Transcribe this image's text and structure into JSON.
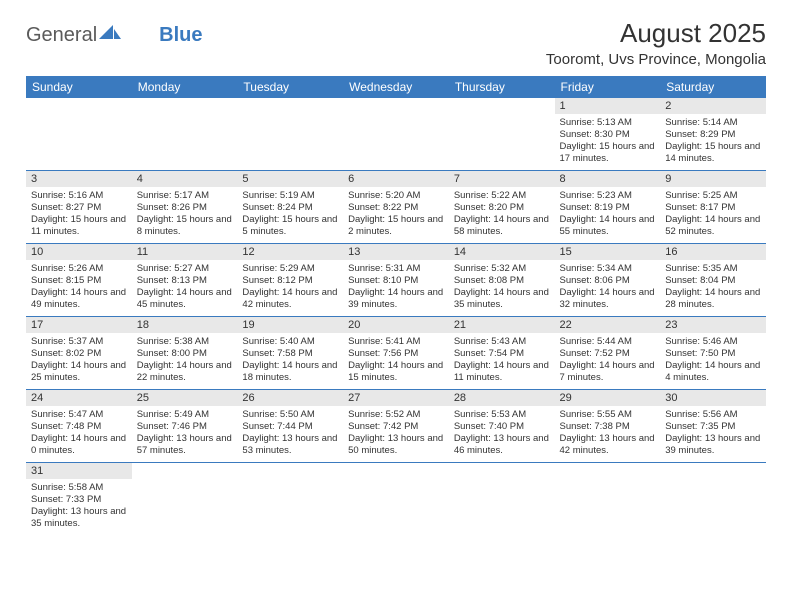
{
  "logo": {
    "general": "General",
    "blue": "Blue"
  },
  "title": "August 2025",
  "location": "Tooromt, Uvs Province, Mongolia",
  "dayHeaders": [
    "Sunday",
    "Monday",
    "Tuesday",
    "Wednesday",
    "Thursday",
    "Friday",
    "Saturday"
  ],
  "colors": {
    "header_bg": "#3a7abf",
    "header_text": "#ffffff",
    "daynum_bg": "#e8e8e8",
    "row_border": "#3a7abf",
    "text": "#333333"
  },
  "weeks": [
    [
      null,
      null,
      null,
      null,
      null,
      {
        "n": "1",
        "sr": "Sunrise: 5:13 AM",
        "ss": "Sunset: 8:30 PM",
        "dl": "Daylight: 15 hours and 17 minutes."
      },
      {
        "n": "2",
        "sr": "Sunrise: 5:14 AM",
        "ss": "Sunset: 8:29 PM",
        "dl": "Daylight: 15 hours and 14 minutes."
      }
    ],
    [
      {
        "n": "3",
        "sr": "Sunrise: 5:16 AM",
        "ss": "Sunset: 8:27 PM",
        "dl": "Daylight: 15 hours and 11 minutes."
      },
      {
        "n": "4",
        "sr": "Sunrise: 5:17 AM",
        "ss": "Sunset: 8:26 PM",
        "dl": "Daylight: 15 hours and 8 minutes."
      },
      {
        "n": "5",
        "sr": "Sunrise: 5:19 AM",
        "ss": "Sunset: 8:24 PM",
        "dl": "Daylight: 15 hours and 5 minutes."
      },
      {
        "n": "6",
        "sr": "Sunrise: 5:20 AM",
        "ss": "Sunset: 8:22 PM",
        "dl": "Daylight: 15 hours and 2 minutes."
      },
      {
        "n": "7",
        "sr": "Sunrise: 5:22 AM",
        "ss": "Sunset: 8:20 PM",
        "dl": "Daylight: 14 hours and 58 minutes."
      },
      {
        "n": "8",
        "sr": "Sunrise: 5:23 AM",
        "ss": "Sunset: 8:19 PM",
        "dl": "Daylight: 14 hours and 55 minutes."
      },
      {
        "n": "9",
        "sr": "Sunrise: 5:25 AM",
        "ss": "Sunset: 8:17 PM",
        "dl": "Daylight: 14 hours and 52 minutes."
      }
    ],
    [
      {
        "n": "10",
        "sr": "Sunrise: 5:26 AM",
        "ss": "Sunset: 8:15 PM",
        "dl": "Daylight: 14 hours and 49 minutes."
      },
      {
        "n": "11",
        "sr": "Sunrise: 5:27 AM",
        "ss": "Sunset: 8:13 PM",
        "dl": "Daylight: 14 hours and 45 minutes."
      },
      {
        "n": "12",
        "sr": "Sunrise: 5:29 AM",
        "ss": "Sunset: 8:12 PM",
        "dl": "Daylight: 14 hours and 42 minutes."
      },
      {
        "n": "13",
        "sr": "Sunrise: 5:31 AM",
        "ss": "Sunset: 8:10 PM",
        "dl": "Daylight: 14 hours and 39 minutes."
      },
      {
        "n": "14",
        "sr": "Sunrise: 5:32 AM",
        "ss": "Sunset: 8:08 PM",
        "dl": "Daylight: 14 hours and 35 minutes."
      },
      {
        "n": "15",
        "sr": "Sunrise: 5:34 AM",
        "ss": "Sunset: 8:06 PM",
        "dl": "Daylight: 14 hours and 32 minutes."
      },
      {
        "n": "16",
        "sr": "Sunrise: 5:35 AM",
        "ss": "Sunset: 8:04 PM",
        "dl": "Daylight: 14 hours and 28 minutes."
      }
    ],
    [
      {
        "n": "17",
        "sr": "Sunrise: 5:37 AM",
        "ss": "Sunset: 8:02 PM",
        "dl": "Daylight: 14 hours and 25 minutes."
      },
      {
        "n": "18",
        "sr": "Sunrise: 5:38 AM",
        "ss": "Sunset: 8:00 PM",
        "dl": "Daylight: 14 hours and 22 minutes."
      },
      {
        "n": "19",
        "sr": "Sunrise: 5:40 AM",
        "ss": "Sunset: 7:58 PM",
        "dl": "Daylight: 14 hours and 18 minutes."
      },
      {
        "n": "20",
        "sr": "Sunrise: 5:41 AM",
        "ss": "Sunset: 7:56 PM",
        "dl": "Daylight: 14 hours and 15 minutes."
      },
      {
        "n": "21",
        "sr": "Sunrise: 5:43 AM",
        "ss": "Sunset: 7:54 PM",
        "dl": "Daylight: 14 hours and 11 minutes."
      },
      {
        "n": "22",
        "sr": "Sunrise: 5:44 AM",
        "ss": "Sunset: 7:52 PM",
        "dl": "Daylight: 14 hours and 7 minutes."
      },
      {
        "n": "23",
        "sr": "Sunrise: 5:46 AM",
        "ss": "Sunset: 7:50 PM",
        "dl": "Daylight: 14 hours and 4 minutes."
      }
    ],
    [
      {
        "n": "24",
        "sr": "Sunrise: 5:47 AM",
        "ss": "Sunset: 7:48 PM",
        "dl": "Daylight: 14 hours and 0 minutes."
      },
      {
        "n": "25",
        "sr": "Sunrise: 5:49 AM",
        "ss": "Sunset: 7:46 PM",
        "dl": "Daylight: 13 hours and 57 minutes."
      },
      {
        "n": "26",
        "sr": "Sunrise: 5:50 AM",
        "ss": "Sunset: 7:44 PM",
        "dl": "Daylight: 13 hours and 53 minutes."
      },
      {
        "n": "27",
        "sr": "Sunrise: 5:52 AM",
        "ss": "Sunset: 7:42 PM",
        "dl": "Daylight: 13 hours and 50 minutes."
      },
      {
        "n": "28",
        "sr": "Sunrise: 5:53 AM",
        "ss": "Sunset: 7:40 PM",
        "dl": "Daylight: 13 hours and 46 minutes."
      },
      {
        "n": "29",
        "sr": "Sunrise: 5:55 AM",
        "ss": "Sunset: 7:38 PM",
        "dl": "Daylight: 13 hours and 42 minutes."
      },
      {
        "n": "30",
        "sr": "Sunrise: 5:56 AM",
        "ss": "Sunset: 7:35 PM",
        "dl": "Daylight: 13 hours and 39 minutes."
      }
    ],
    [
      {
        "n": "31",
        "sr": "Sunrise: 5:58 AM",
        "ss": "Sunset: 7:33 PM",
        "dl": "Daylight: 13 hours and 35 minutes."
      },
      null,
      null,
      null,
      null,
      null,
      null
    ]
  ]
}
